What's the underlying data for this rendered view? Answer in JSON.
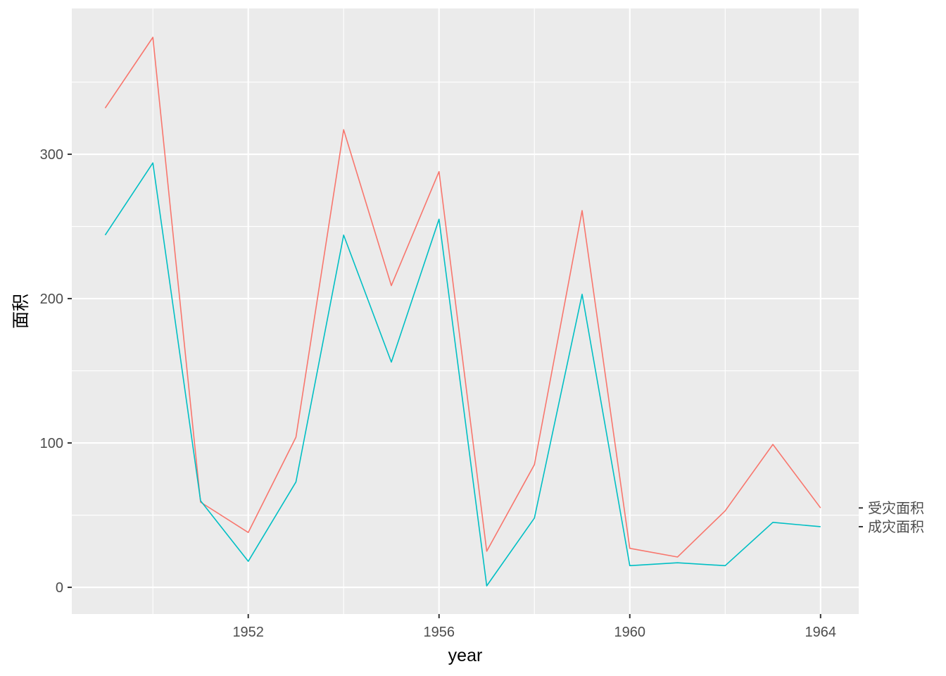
{
  "chart_data": {
    "type": "line",
    "xlabel": "year",
    "ylabel": "面积",
    "x": [
      1949,
      1950,
      1951,
      1952,
      1953,
      1954,
      1955,
      1956,
      1957,
      1958,
      1959,
      1960,
      1961,
      1962,
      1963,
      1964
    ],
    "xticks": [
      1952,
      1956,
      1960,
      1964
    ],
    "yticks": [
      0,
      100,
      200,
      300
    ],
    "xlim": [
      1948.3,
      1964.8
    ],
    "ylim": [
      -18.5,
      401
    ],
    "grid": true,
    "legend": "none",
    "series": [
      {
        "name": "受灾面积",
        "color": "#F8766D",
        "values": [
          332,
          381,
          59,
          38,
          104,
          317,
          209,
          288,
          25,
          85,
          261,
          27,
          21,
          53,
          99,
          55
        ]
      },
      {
        "name": "成灾面积",
        "color": "#00BFC4",
        "values": [
          244,
          294,
          60,
          18,
          73,
          244,
          156,
          255,
          1,
          48,
          203,
          15,
          17,
          15,
          45,
          42
        ]
      }
    ]
  }
}
